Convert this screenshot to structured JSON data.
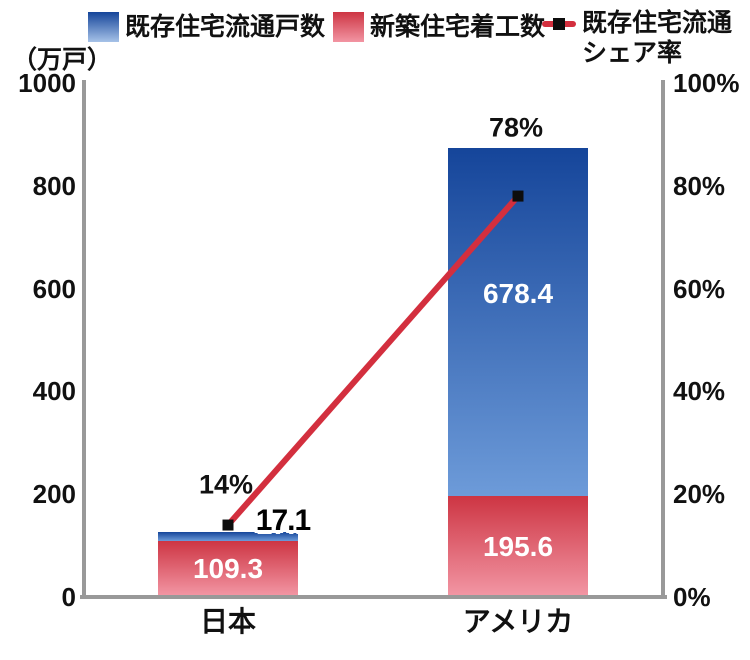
{
  "unit_label": "（万戸）",
  "legend": {
    "items": [
      {
        "label": "既存住宅流通戸数",
        "icon": "blue-gradient-swatch"
      },
      {
        "label": "新築住宅着工数",
        "icon": "red-gradient-swatch"
      },
      {
        "label": "既存住宅流通\nシェア率",
        "icon": "red-line-black-marker"
      }
    ]
  },
  "colors": {
    "blue_top": "#15459a",
    "blue_bottom": "#6d9bd9",
    "legend_blue_bottom": "#a6c2e8",
    "red_top": "#cd3543",
    "red_bottom": "#f295a3",
    "line": "#d32f3e",
    "marker": "#0d0d0d",
    "axis": "#999999",
    "bar_text": "#ffffff"
  },
  "chart_data": {
    "type": "bar",
    "subtype": "stacked-bar-with-line",
    "categories": [
      "日本",
      "アメリカ"
    ],
    "series": [
      {
        "name": "新築住宅着工数",
        "role": "bar-bottom-red",
        "values": [
          109.3,
          195.6
        ]
      },
      {
        "name": "既存住宅流通戸数",
        "role": "bar-top-blue",
        "values": [
          17.1,
          678.4
        ]
      }
    ],
    "line_series": {
      "name": "既存住宅流通シェア率",
      "values_percent": [
        14,
        78
      ],
      "labels": [
        "14%",
        "78%"
      ]
    },
    "bar_value_labels": [
      [
        "109.3",
        "17.1"
      ],
      [
        "195.6",
        "678.4"
      ]
    ],
    "left_axis": {
      "unit": "（万戸）",
      "ylim": [
        0,
        1000
      ],
      "ticks": [
        "1000",
        "800",
        "600",
        "400",
        "200",
        "0"
      ]
    },
    "right_axis": {
      "unit": "%",
      "ylim": [
        0,
        100
      ],
      "ticks": [
        "100%",
        "80%",
        "60%",
        "40%",
        "20%",
        "0%"
      ]
    },
    "grid": false,
    "legend_position": "top"
  }
}
